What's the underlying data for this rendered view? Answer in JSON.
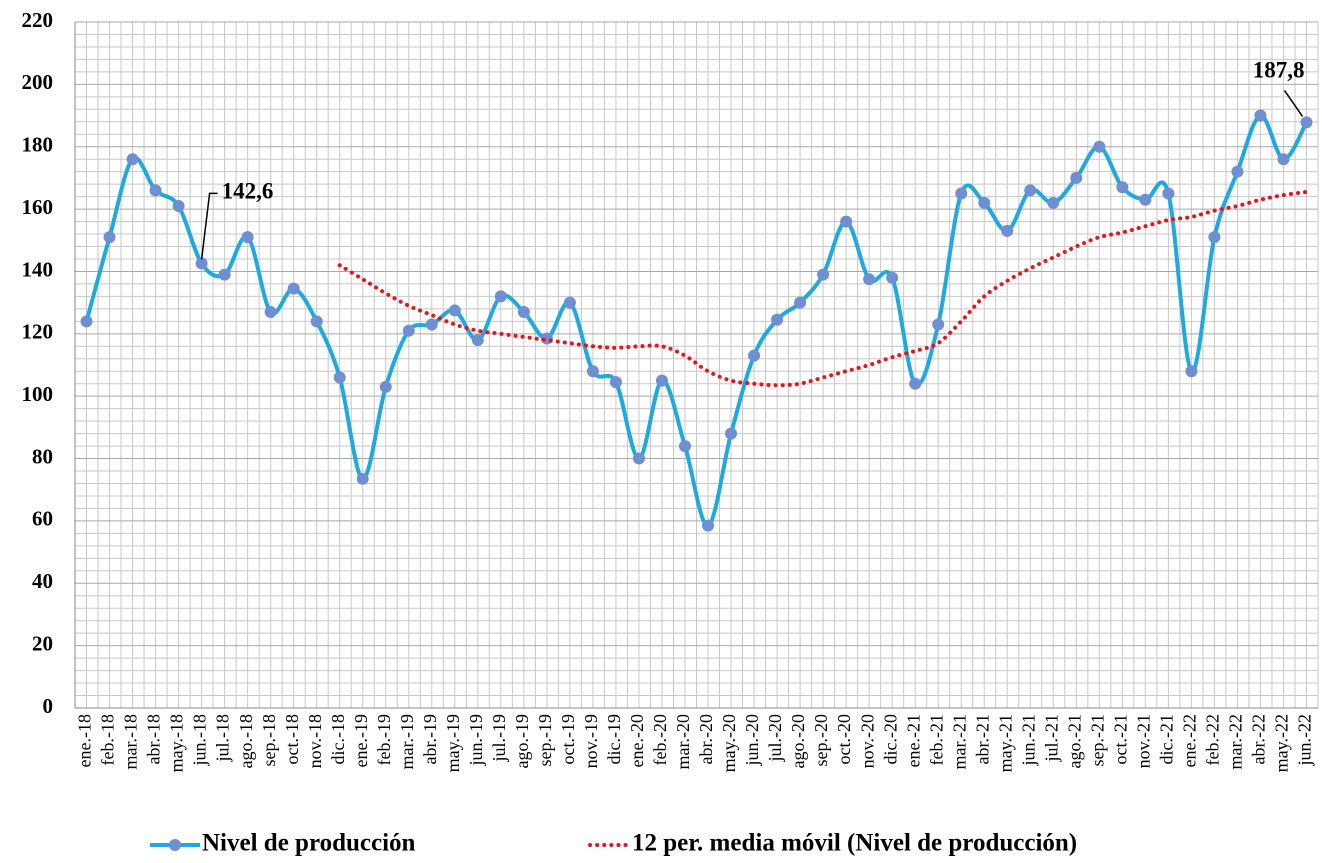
{
  "chart_data": {
    "type": "line",
    "categories": [
      "ene.-18",
      "feb.-18",
      "mar.-18",
      "abr.-18",
      "may.-18",
      "jun.-18",
      "jul.-18",
      "ago.-18",
      "sep.-18",
      "oct.-18",
      "nov.-18",
      "dic.-18",
      "ene.-19",
      "feb.-19",
      "mar.-19",
      "abr.-19",
      "may.-19",
      "jun.-19",
      "jul.-19",
      "ago.-19",
      "sep.-19",
      "oct.-19",
      "nov.-19",
      "dic.-19",
      "ene.-20",
      "feb.-20",
      "mar.-20",
      "abr.-20",
      "may.-20",
      "jun.-20",
      "jul.-20",
      "ago.-20",
      "sep.-20",
      "oct.-20",
      "nov.-20",
      "dic.-20",
      "ene.-21",
      "feb.-21",
      "mar.-21",
      "abr.-21",
      "may.-21",
      "jun.-21",
      "jul.-21",
      "ago.-21",
      "sep.-21",
      "oct.-21",
      "nov.-21",
      "dic.-21",
      "ene.-22",
      "feb.-22",
      "mar.-22",
      "abr.-22",
      "may.-22",
      "jun.-22"
    ],
    "series": [
      {
        "name": "Nivel de producción",
        "color": "#1fa9e1",
        "marker_color": "#6e8fd2",
        "style": "solid",
        "values": [
          124,
          151,
          176,
          166,
          161,
          142.6,
          139,
          151,
          127,
          134.5,
          124,
          106,
          73.5,
          103,
          121,
          123,
          127.5,
          118,
          132,
          127,
          118.5,
          130,
          108,
          104.5,
          80,
          105,
          84,
          58.5,
          88,
          113,
          124.5,
          130,
          139,
          156,
          137.5,
          138,
          104,
          123,
          165,
          162,
          153,
          166,
          162,
          170,
          180,
          167,
          163,
          165,
          108,
          151,
          172,
          190,
          176,
          187.8
        ],
        "value_labels": [
          null,
          null,
          null,
          null,
          null,
          "142,6",
          null,
          null,
          null,
          null,
          null,
          null,
          null,
          null,
          null,
          null,
          null,
          null,
          null,
          null,
          null,
          null,
          null,
          null,
          null,
          null,
          null,
          null,
          null,
          null,
          null,
          null,
          null,
          null,
          null,
          null,
          null,
          null,
          null,
          null,
          null,
          null,
          null,
          null,
          null,
          null,
          null,
          null,
          null,
          null,
          null,
          null,
          null,
          "187,8"
        ]
      },
      {
        "name": "12 per. media móvil (Nivel de producción)",
        "color": "#e8141c",
        "style": "dotted",
        "values": [
          null,
          null,
          null,
          null,
          null,
          null,
          null,
          null,
          null,
          null,
          null,
          142,
          137.5,
          133,
          129,
          126,
          123,
          121,
          120,
          119,
          118,
          117,
          116,
          115.5,
          116,
          116,
          113,
          108,
          105,
          104,
          103.5,
          104,
          106,
          108,
          110,
          112.5,
          114.5,
          117,
          124,
          132,
          137,
          141,
          144.5,
          148,
          151,
          152.5,
          154.5,
          156.5,
          157.5,
          159.5,
          161,
          163,
          164.5,
          165.5
        ]
      }
    ],
    "ylim": [
      0,
      220
    ],
    "yticks": [
      0,
      20,
      40,
      60,
      80,
      100,
      120,
      140,
      160,
      180,
      200,
      220
    ],
    "grid": true,
    "legend": "bottom"
  }
}
